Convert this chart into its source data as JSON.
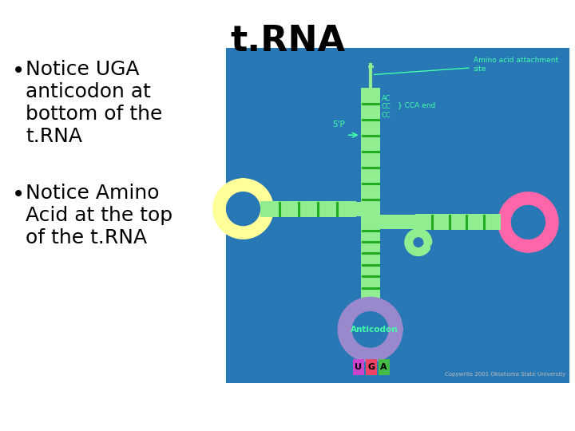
{
  "title": "t.RNA",
  "title_fontsize": 32,
  "title_fontweight": "bold",
  "background_color": "#ffffff",
  "bullet1_line1": "Notice UGA",
  "bullet1_line2": "anticodon at",
  "bullet1_line3": "bottom of the",
  "bullet1_line4": "t.RNA",
  "bullet2_line1": "Notice Amino",
  "bullet2_line2": "Acid at the top",
  "bullet2_line3": "of the t.RNA",
  "bullet_fontsize": 18,
  "image_bg_color": "#2878b5",
  "trna_green_outer": "#90ee90",
  "trna_green_inner": "#22aa22",
  "trna_yellow": "#ffff99",
  "trna_pink": "#ff66aa",
  "trna_purple": "#9988cc",
  "trna_label_color": "#44ffaa",
  "uga_u_color": "#cc44cc",
  "uga_g_color": "#ee4466",
  "uga_a_color": "#44bb44",
  "copyright_color": "#bbbbbb"
}
